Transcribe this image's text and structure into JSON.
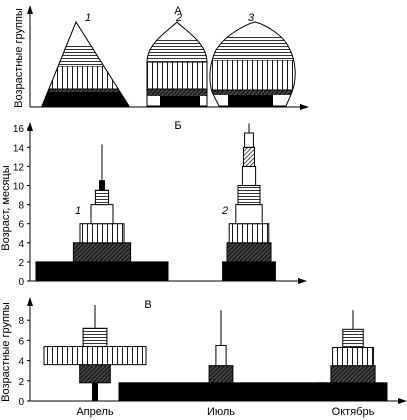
{
  "colors": {
    "ink": "#000000",
    "paper": "#ffffff"
  },
  "panel_a": {
    "letter": "А",
    "ylabel": "Возрастные группы",
    "shape_labels": [
      "1",
      "2",
      "3"
    ]
  },
  "panel_b": {
    "letter": "Б",
    "ylabel": "Возраст, месяцы",
    "yticks": [
      "0",
      "2",
      "4",
      "6",
      "8",
      "10",
      "12",
      "14",
      "16"
    ],
    "pyramid_labels": [
      "1",
      "2"
    ]
  },
  "panel_c": {
    "letter": "В",
    "ylabel": "Возрастные группы",
    "yticks": [
      "0",
      "2",
      "4",
      "6",
      "8"
    ],
    "xlabels": [
      "Апрель",
      "Июль",
      "Октябрь"
    ]
  },
  "chart_data": [
    {
      "type": "diagram",
      "panel": "Б",
      "ylim": [
        0,
        17
      ],
      "pyramids": [
        {
          "name": "1",
          "layers": [
            {
              "from": 0,
              "to": 2.0,
              "halfwidth": 6.0,
              "fill": "black"
            },
            {
              "from": 2.0,
              "to": 4.0,
              "halfwidth": 2.6,
              "fill": "dense-hatch"
            },
            {
              "from": 4.0,
              "to": 6.0,
              "halfwidth": 2.0,
              "fill": "vertical"
            },
            {
              "from": 6.0,
              "to": 8.0,
              "halfwidth": 1.0,
              "fill": "white"
            },
            {
              "from": 8.0,
              "to": 9.5,
              "halfwidth": 0.6,
              "fill": "horizontal"
            },
            {
              "from": 9.5,
              "to": 10.5,
              "halfwidth": 0.15,
              "fill": "black"
            }
          ],
          "max_age": 14.3
        },
        {
          "name": "2",
          "layers": [
            {
              "from": 0,
              "to": 2.0,
              "halfwidth": 2.4,
              "fill": "black"
            },
            {
              "from": 2.0,
              "to": 4.0,
              "halfwidth": 2.0,
              "fill": "dense-hatch"
            },
            {
              "from": 4.0,
              "to": 6.0,
              "halfwidth": 1.8,
              "fill": "vertical"
            },
            {
              "from": 6.0,
              "to": 8.0,
              "halfwidth": 1.2,
              "fill": "white"
            },
            {
              "from": 8.0,
              "to": 10.0,
              "halfwidth": 1.0,
              "fill": "horizontal"
            },
            {
              "from": 10.0,
              "to": 12.0,
              "halfwidth": 0.6,
              "fill": "white"
            },
            {
              "from": 12.0,
              "to": 14.0,
              "halfwidth": 0.5,
              "fill": "hatch"
            },
            {
              "from": 14.0,
              "to": 15.5,
              "halfwidth": 0.4,
              "fill": "white"
            }
          ],
          "max_age": 16.5
        }
      ]
    },
    {
      "type": "diagram",
      "panel": "В",
      "ylim": [
        0,
        10
      ],
      "categories": [
        "Апрель",
        "Июль",
        "Октябрь"
      ],
      "pyramids": [
        {
          "name": "Апрель",
          "layers": [
            {
              "from": 0,
              "to": 1.8,
              "halfwidth": 0.1,
              "fill": "black"
            },
            {
              "from": 1.8,
              "to": 3.6,
              "halfwidth": 0.9,
              "fill": "dense-hatch"
            },
            {
              "from": 3.6,
              "to": 5.4,
              "halfwidth": 3.0,
              "fill": "vertical"
            },
            {
              "from": 5.4,
              "to": 7.2,
              "halfwidth": 0.7,
              "fill": "horizontal"
            }
          ],
          "max_age": 9.5
        },
        {
          "name": "Июль",
          "layers": [
            {
              "from": 0,
              "to": 1.8,
              "halfwidth": 6.0,
              "fill": "black"
            },
            {
              "from": 1.8,
              "to": 3.5,
              "halfwidth": 0.7,
              "fill": "dense-hatch"
            },
            {
              "from": 3.5,
              "to": 5.5,
              "halfwidth": 0.3,
              "fill": "white"
            }
          ],
          "max_age": 9.0
        },
        {
          "name": "Октябрь",
          "layers": [
            {
              "from": 0,
              "to": 1.8,
              "halfwidth": 2.0,
              "fill": "black"
            },
            {
              "from": 1.8,
              "to": 3.5,
              "halfwidth": 1.3,
              "fill": "dense-hatch"
            },
            {
              "from": 3.5,
              "to": 5.3,
              "halfwidth": 1.2,
              "fill": "vertical"
            },
            {
              "from": 5.3,
              "to": 7.1,
              "halfwidth": 0.6,
              "fill": "horizontal"
            }
          ],
          "max_age": 9.0
        }
      ]
    }
  ]
}
